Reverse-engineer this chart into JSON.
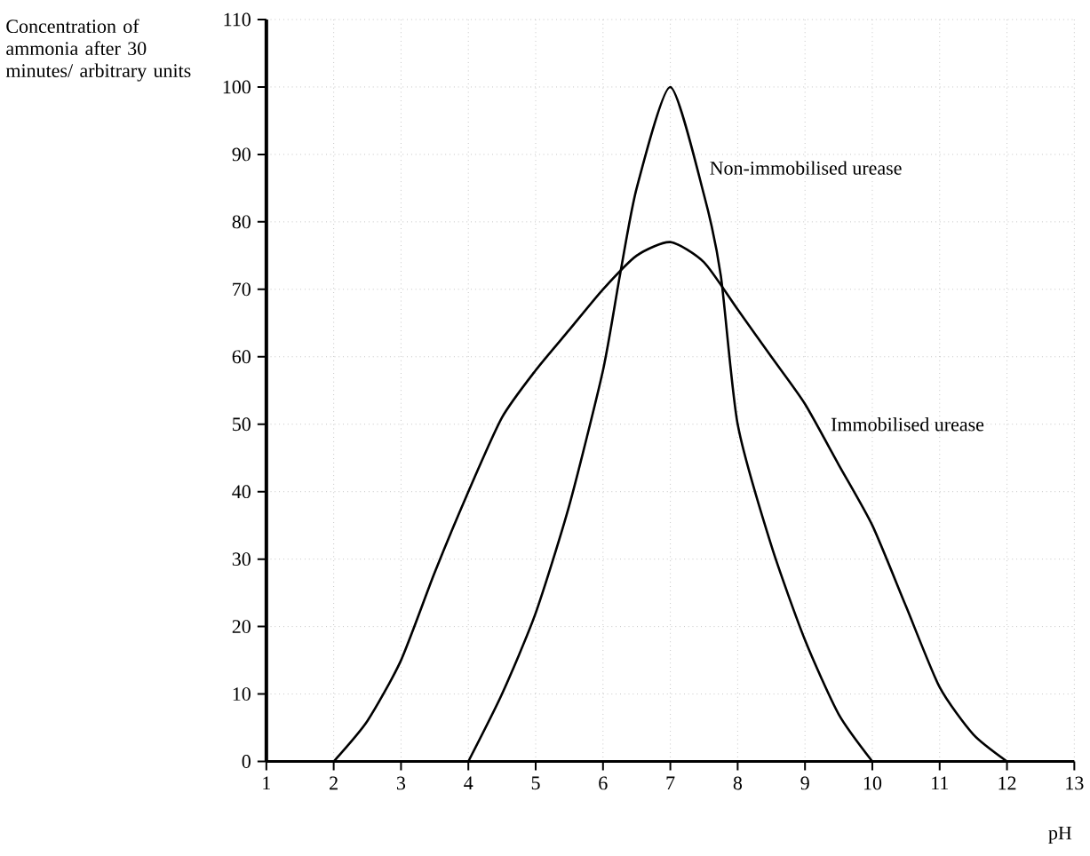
{
  "chart_data": {
    "type": "line",
    "xlabel": "pH",
    "ylabel": "Concentration of ammonia after 30 minutes/ arbitrary units",
    "xlim": [
      1,
      13
    ],
    "ylim": [
      0,
      110
    ],
    "xticks": [
      1,
      2,
      3,
      4,
      5,
      6,
      7,
      8,
      9,
      10,
      11,
      12,
      13
    ],
    "yticks": [
      0,
      10,
      20,
      30,
      40,
      50,
      60,
      70,
      80,
      90,
      100,
      110
    ],
    "grid": true,
    "series": [
      {
        "name": "Non-immobilised urease",
        "color": "#000000",
        "x": [
          4,
          4.5,
          5,
          5.5,
          6,
          6.25,
          6.5,
          7,
          7.5,
          7.75,
          8,
          8.5,
          9,
          9.5,
          10
        ],
        "values": [
          0,
          10,
          22,
          38,
          58,
          72,
          85,
          100,
          84,
          72,
          50,
          32,
          18,
          7,
          0
        ]
      },
      {
        "name": "Immobilised urease",
        "color": "#000000",
        "x": [
          2,
          2.5,
          3,
          3.5,
          4,
          4.5,
          5,
          5.5,
          6,
          6.5,
          7,
          7.5,
          8,
          8.5,
          9,
          9.5,
          10,
          10.5,
          11,
          11.5,
          12
        ],
        "values": [
          0,
          6,
          15,
          28,
          40,
          51,
          58,
          64,
          70,
          75,
          77,
          74,
          67,
          60,
          53,
          44,
          35,
          23,
          11,
          4,
          0
        ]
      }
    ]
  }
}
